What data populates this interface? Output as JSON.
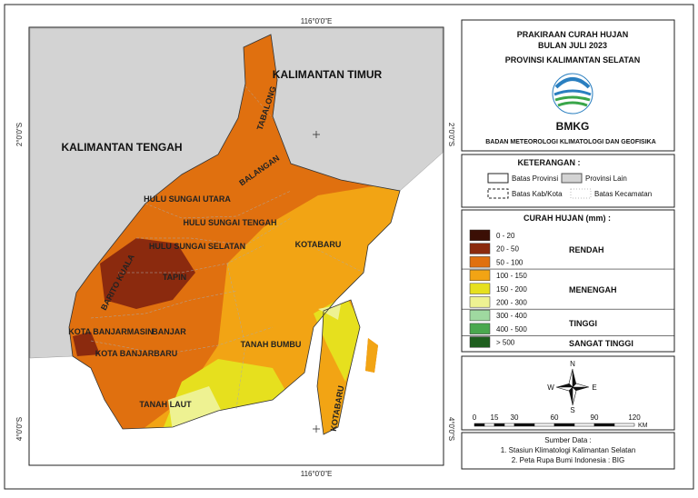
{
  "coordinates": {
    "top": "116°0'0\"E",
    "bottom": "116°0'0\"E",
    "left": [
      "2°0'0\"S",
      "4°0'0\"S"
    ],
    "right": [
      "2°0'0\"S",
      "4°0'0\"S"
    ]
  },
  "map_labels": [
    "KALIMANTAN TIMUR",
    "KALIMANTAN TENGAH",
    "TABALONG",
    "BALANGAN",
    "HULU SUNGAI UTARA",
    "HULU SUNGAI TENGAH",
    "HULU SUNGAI SELATAN",
    "TAPIN",
    "BARITO KUALA",
    "KOTABARU",
    "KOTA BANJARMASIN",
    "BANJAR",
    "KOTA BANJARBARU",
    "TANAH BUMBU",
    "TANAH LAUT",
    "KOTABARU"
  ],
  "title": [
    "PRAKIRAAN CURAH HUJAN",
    "BULAN JULI 2023",
    "PROVINSI KALIMANTAN SELATAN"
  ],
  "logo_text": "BMKG",
  "agency": "BADAN METEOROLOGI KLIMATOLOGI DAN GEOFISIKA",
  "keterangan": {
    "title": "KETERANGAN :",
    "items": [
      "Batas Provinsi",
      "Provinsi Lain",
      "Batas Kab/Kota",
      "Batas Kecamatan"
    ]
  },
  "legend": {
    "title": "CURAH HUJAN (mm) :",
    "groups": [
      {
        "label": "RENDAH",
        "classes": [
          {
            "label": "0 - 20",
            "color": "#3b0f05"
          },
          {
            "label": "20 - 50",
            "color": "#8b2a0e"
          },
          {
            "label": "50 - 100",
            "color": "#e0700f"
          }
        ]
      },
      {
        "label": "MENENGAH",
        "classes": [
          {
            "label": "100 - 150",
            "color": "#f2a414"
          },
          {
            "label": "150 - 200",
            "color": "#e6e01e"
          },
          {
            "label": "200 - 300",
            "color": "#eef292"
          }
        ]
      },
      {
        "label": "TINGGI",
        "classes": [
          {
            "label": "300 - 400",
            "color": "#9fd9a0"
          },
          {
            "label": "400 - 500",
            "color": "#4aa84e"
          }
        ]
      },
      {
        "label": "SANGAT TINGGI",
        "classes": [
          {
            "label": "> 500",
            "color": "#1e5e1e"
          }
        ]
      }
    ]
  },
  "compass": {
    "n": "N",
    "s": "S",
    "e": "E",
    "w": "W"
  },
  "scale": {
    "ticks": [
      0,
      15,
      30,
      60,
      90,
      120
    ],
    "unit": "KM"
  },
  "source": {
    "title": "Sumber Data :",
    "lines": [
      "1. Stasiun Klimatologi Kalimantan Selatan",
      "2. Peta Rupa Bumi Indonesia : BIG"
    ]
  }
}
